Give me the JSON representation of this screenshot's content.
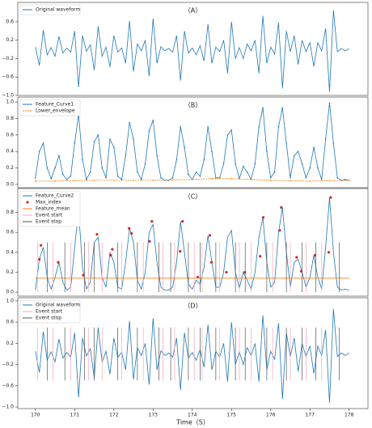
{
  "chart_data": [
    {
      "type": "line",
      "title": "（A）",
      "xlim": [
        169.55,
        178.48
      ],
      "ylim": [
        -1.0,
        1.02
      ],
      "yticks": [
        {
          "value": -1,
          "label": "−1.0"
        },
        {
          "value": -0.6,
          "label": "−0.6"
        },
        {
          "value": -0.2,
          "label": "−0.2"
        },
        0.2,
        0.6
      ],
      "x": [
        170,
        170.1,
        170.2,
        170.3,
        170.4,
        170.5,
        170.6,
        170.7,
        170.8,
        170.9,
        171,
        171.1,
        171.2,
        171.3,
        171.4,
        171.5,
        171.6,
        171.7,
        171.8,
        171.9,
        172,
        172.1,
        172.2,
        172.3,
        172.4,
        172.5,
        172.6,
        172.7,
        172.8,
        172.9,
        173,
        173.1,
        173.2,
        173.3,
        173.4,
        173.5,
        173.6,
        173.7,
        173.8,
        173.9,
        174,
        174.1,
        174.2,
        174.3,
        174.4,
        174.5,
        174.6,
        174.7,
        174.8,
        174.9,
        175,
        175.1,
        175.2,
        175.3,
        175.4,
        175.5,
        175.6,
        175.7,
        175.8,
        175.9,
        176,
        176.1,
        176.2,
        176.3,
        176.4,
        176.5,
        176.6,
        176.7,
        176.8,
        176.9,
        177,
        177.1,
        177.2,
        177.3,
        177.4,
        177.5,
        177.6,
        177.7,
        177.8,
        177.9,
        178
      ],
      "series": [
        {
          "name": "Original waveform",
          "color": "#1f77b4",
          "values": [
            0.05,
            -0.35,
            0.42,
            -0.12,
            0.04,
            -0.15,
            0.28,
            -0.08,
            0.03,
            -0.06,
            0.4,
            -0.82,
            0.3,
            -0.04,
            0.1,
            -0.45,
            0.5,
            -0.15,
            0.05,
            -0.38,
            0.3,
            -0.06,
            0.03,
            -0.3,
            0.62,
            -0.48,
            0.12,
            -0.03,
            0.2,
            -0.58,
            0.67,
            -0.3,
            0.06,
            -0.03,
            0.02,
            -0.06,
            0.3,
            -0.68,
            0.4,
            -0.08,
            0.03,
            -0.12,
            0.08,
            -0.25,
            0.55,
            -0.3,
            0.05,
            -0.05,
            0.2,
            -0.52,
            0.6,
            -0.2,
            0.04,
            -0.2,
            0.12,
            -0.03,
            0.2,
            -0.52,
            0.73,
            -0.3,
            0.05,
            -0.1,
            0.58,
            -0.85,
            0.4,
            -0.05,
            0.3,
            -0.33,
            0.2,
            -0.05,
            0.15,
            -0.37,
            0.15,
            -0.03,
            0.45,
            -0.92,
            0.85,
            -0.05,
            0.02,
            -0.03,
            0.02
          ]
        }
      ]
    },
    {
      "type": "line",
      "title": "（B）",
      "xlim": [
        169.55,
        178.48
      ],
      "ylim": [
        -0.04,
        1.06
      ],
      "yticks": [
        {
          "value": 0,
          "label": "0.0"
        },
        0.2,
        0.4,
        0.6,
        0.8,
        {
          "value": 1,
          "label": "1.0"
        }
      ],
      "x": [
        170,
        170.1,
        170.2,
        170.3,
        170.4,
        170.5,
        170.6,
        170.7,
        170.8,
        170.9,
        171,
        171.1,
        171.2,
        171.3,
        171.4,
        171.5,
        171.6,
        171.7,
        171.8,
        171.9,
        172,
        172.1,
        172.2,
        172.3,
        172.4,
        172.5,
        172.6,
        172.7,
        172.8,
        172.9,
        173,
        173.1,
        173.2,
        173.3,
        173.4,
        173.5,
        173.6,
        173.7,
        173.8,
        173.9,
        174,
        174.1,
        174.2,
        174.3,
        174.4,
        174.5,
        174.6,
        174.7,
        174.8,
        174.9,
        175,
        175.1,
        175.2,
        175.3,
        175.4,
        175.5,
        175.6,
        175.7,
        175.8,
        175.9,
        176,
        176.1,
        176.2,
        176.3,
        176.4,
        176.5,
        176.6,
        176.7,
        176.8,
        176.9,
        177,
        177.1,
        177.2,
        177.3,
        177.4,
        177.5,
        177.6,
        177.7,
        177.8,
        177.9,
        178
      ],
      "series": [
        {
          "name": "Feature_Curve1",
          "color": "#1f77b4",
          "marker": true,
          "values": [
            0.08,
            0.4,
            0.5,
            0.2,
            0.07,
            0.2,
            0.35,
            0.12,
            0.06,
            0.1,
            0.5,
            0.85,
            0.3,
            0.06,
            0.15,
            0.52,
            0.6,
            0.2,
            0.08,
            0.55,
            0.45,
            0.1,
            0.06,
            0.35,
            0.75,
            0.55,
            0.15,
            0.06,
            0.25,
            0.65,
            0.78,
            0.35,
            0.08,
            0.05,
            0.05,
            0.08,
            0.3,
            0.7,
            0.45,
            0.12,
            0.06,
            0.15,
            0.1,
            0.3,
            0.7,
            0.4,
            0.08,
            0.08,
            0.25,
            0.6,
            0.66,
            0.25,
            0.07,
            0.22,
            0.15,
            0.06,
            0.25,
            0.7,
            0.93,
            0.4,
            0.08,
            0.15,
            0.7,
            0.93,
            0.5,
            0.08,
            0.35,
            0.4,
            0.25,
            0.08,
            0.2,
            0.45,
            0.2,
            0.06,
            0.55,
            0.99,
            0.5,
            0.08,
            0.05,
            0.06,
            0.05
          ]
        },
        {
          "name": "Lower_envelope",
          "color": "#ff7f0e",
          "marker": true,
          "dashed": true,
          "x": [
            170,
            170.5,
            171,
            171.5,
            172,
            172.5,
            173,
            173.5,
            174,
            174.5,
            175,
            175.5,
            176,
            176.5,
            177,
            177.5,
            178
          ],
          "values": [
            0.04,
            0.04,
            0.045,
            0.05,
            0.05,
            0.05,
            0.05,
            0.055,
            0.06,
            0.07,
            0.07,
            0.06,
            0.05,
            0.045,
            0.04,
            0.045,
            0.05
          ]
        }
      ]
    },
    {
      "type": "line",
      "title": "（C）",
      "xlim": [
        169.55,
        178.48
      ],
      "ylim": [
        -0.04,
        1.04
      ],
      "yticks": [
        {
          "value": 0,
          "label": "0.0"
        },
        0.2,
        0.4,
        0.6,
        0.8
      ],
      "x": [
        170,
        170.1,
        170.2,
        170.3,
        170.4,
        170.5,
        170.6,
        170.7,
        170.8,
        170.9,
        171,
        171.1,
        171.2,
        171.3,
        171.4,
        171.5,
        171.6,
        171.7,
        171.8,
        171.9,
        172,
        172.1,
        172.2,
        172.3,
        172.4,
        172.5,
        172.6,
        172.7,
        172.8,
        172.9,
        173,
        173.1,
        173.2,
        173.3,
        173.4,
        173.5,
        173.6,
        173.7,
        173.8,
        173.9,
        174,
        174.1,
        174.2,
        174.3,
        174.4,
        174.5,
        174.6,
        174.7,
        174.8,
        174.9,
        175,
        175.1,
        175.2,
        175.3,
        175.4,
        175.5,
        175.6,
        175.7,
        175.8,
        175.9,
        176,
        176.1,
        176.2,
        176.3,
        176.4,
        176.5,
        176.6,
        176.7,
        176.8,
        176.9,
        177,
        177.1,
        177.2,
        177.3,
        177.4,
        177.5,
        177.6,
        177.7,
        177.8,
        177.9,
        178
      ],
      "series": [
        {
          "name": "Feature_Curve2",
          "color": "#1f77b4",
          "values": [
            0.02,
            0.33,
            0.45,
            0.15,
            0.03,
            0.15,
            0.3,
            0.1,
            0.02,
            0.05,
            0.45,
            0.82,
            0.25,
            0.03,
            0.1,
            0.5,
            0.55,
            0.15,
            0.05,
            0.4,
            0.3,
            0.05,
            0.03,
            0.3,
            0.64,
            0.5,
            0.12,
            0.03,
            0.2,
            0.6,
            0.68,
            0.3,
            0.05,
            0.02,
            0.02,
            0.05,
            0.3,
            0.71,
            0.4,
            0.08,
            0.03,
            0.12,
            0.08,
            0.25,
            0.57,
            0.3,
            0.05,
            0.05,
            0.2,
            0.55,
            0.62,
            0.2,
            0.04,
            0.2,
            0.12,
            0.03,
            0.2,
            0.55,
            0.75,
            0.3,
            0.05,
            0.1,
            0.6,
            0.85,
            0.4,
            0.05,
            0.3,
            0.33,
            0.2,
            0.05,
            0.15,
            0.37,
            0.15,
            0.03,
            0.45,
            0.95,
            0.4,
            0.05,
            0.02,
            0.03,
            0.02
          ]
        },
        {
          "name": "Max_index",
          "color": "#d62728",
          "kind": "scatter",
          "x": [
            170.1,
            170.14,
            170.58,
            171.09,
            171.22,
            171.57,
            171.92,
            171.96,
            172.39,
            172.45,
            172.91,
            172.97,
            173.69,
            173.75,
            174.14,
            174.45,
            174.49,
            174.87,
            175.34,
            175.73,
            175.81,
            176.23,
            176.27,
            176.66,
            176.78,
            177.13,
            177.48,
            177.53
          ],
          "values": [
            0.33,
            0.47,
            0.3,
            0.82,
            0.17,
            0.58,
            0.37,
            0.43,
            0.64,
            0.59,
            0.51,
            0.71,
            0.41,
            0.71,
            0.15,
            0.57,
            0.3,
            0.2,
            0.2,
            0.36,
            0.75,
            0.62,
            0.85,
            0.35,
            0.21,
            0.37,
            0.4,
            0.95
          ]
        },
        {
          "name": "Feature_mean",
          "color": "#ff7f0e",
          "x": [
            170,
            178
          ],
          "values": [
            0.14,
            0.14
          ]
        },
        {
          "name": "Event start",
          "color": "#f4a6b8",
          "kind": "vline",
          "range": [
            0,
            0.5
          ],
          "x": [
            170.05,
            170.45,
            170.9,
            171.35,
            171.7,
            172.2,
            172.75,
            173.25,
            173.55,
            174.05,
            174.25,
            174.7,
            175.2,
            175.5,
            176.05,
            176.5,
            176.9,
            177.3
          ]
        },
        {
          "name": "Event stop",
          "color": "#555555",
          "kind": "vline",
          "range": [
            0,
            0.5
          ],
          "x": [
            170.3,
            170.75,
            171.25,
            171.5,
            172.1,
            172.6,
            173.15,
            173.45,
            173.9,
            174.2,
            174.6,
            175.1,
            175.35,
            175.9,
            176.4,
            176.8,
            177.15,
            177.75
          ]
        }
      ]
    },
    {
      "type": "line",
      "title": "（D）",
      "xlabel": "Time（S）",
      "xlim": [
        169.55,
        178.48
      ],
      "ylim": [
        -1.03,
        1.06
      ],
      "xticks": [
        170,
        171,
        172,
        173,
        174,
        175,
        176,
        177,
        178
      ],
      "yticks": [
        {
          "value": -1,
          "label": "−1.0"
        },
        {
          "value": -0.6,
          "label": "−0.6"
        },
        {
          "value": -0.2,
          "label": "−0.2"
        },
        0.2,
        0.6,
        {
          "value": 1,
          "label": "1.0"
        }
      ],
      "x": [
        170,
        170.1,
        170.2,
        170.3,
        170.4,
        170.5,
        170.6,
        170.7,
        170.8,
        170.9,
        171,
        171.1,
        171.2,
        171.3,
        171.4,
        171.5,
        171.6,
        171.7,
        171.8,
        171.9,
        172,
        172.1,
        172.2,
        172.3,
        172.4,
        172.5,
        172.6,
        172.7,
        172.8,
        172.9,
        173,
        173.1,
        173.2,
        173.3,
        173.4,
        173.5,
        173.6,
        173.7,
        173.8,
        173.9,
        174,
        174.1,
        174.2,
        174.3,
        174.4,
        174.5,
        174.6,
        174.7,
        174.8,
        174.9,
        175,
        175.1,
        175.2,
        175.3,
        175.4,
        175.5,
        175.6,
        175.7,
        175.8,
        175.9,
        176,
        176.1,
        176.2,
        176.3,
        176.4,
        176.5,
        176.6,
        176.7,
        176.8,
        176.9,
        177,
        177.1,
        177.2,
        177.3,
        177.4,
        177.5,
        177.6,
        177.7,
        177.8,
        177.9,
        178
      ],
      "series": [
        {
          "name": "Original waveform",
          "color": "#1f77b4",
          "values": [
            0.05,
            -0.35,
            0.42,
            -0.12,
            0.04,
            -0.15,
            0.28,
            -0.08,
            0.03,
            -0.06,
            0.4,
            -0.82,
            0.3,
            -0.04,
            0.1,
            -0.45,
            0.5,
            -0.15,
            0.05,
            -0.38,
            0.3,
            -0.06,
            0.03,
            -0.3,
            0.62,
            -0.48,
            0.12,
            -0.03,
            0.2,
            -0.58,
            0.67,
            -0.3,
            0.06,
            -0.03,
            0.02,
            -0.06,
            0.3,
            -0.68,
            0.4,
            -0.08,
            0.03,
            -0.12,
            0.08,
            -0.25,
            0.55,
            -0.3,
            0.05,
            -0.05,
            0.2,
            -0.52,
            0.6,
            -0.2,
            0.04,
            -0.2,
            0.12,
            -0.03,
            0.2,
            -0.52,
            0.73,
            -0.3,
            0.05,
            -0.1,
            0.58,
            -0.85,
            0.4,
            -0.05,
            0.3,
            -0.33,
            0.2,
            -0.05,
            0.15,
            -0.37,
            0.15,
            -0.03,
            0.45,
            -0.92,
            0.85,
            -0.05,
            0.02,
            -0.03,
            0.02
          ]
        },
        {
          "name": "Event start",
          "color": "#f4a6b8",
          "kind": "vline",
          "range": [
            -0.5,
            0.5
          ],
          "x": [
            170.05,
            170.45,
            170.9,
            171.35,
            171.7,
            172.2,
            172.75,
            173.25,
            173.55,
            174.05,
            174.25,
            174.7,
            175.2,
            175.5,
            176.05,
            176.5,
            176.9,
            177.3
          ]
        },
        {
          "name": "Event stop",
          "color": "#555555",
          "kind": "vline",
          "range": [
            -0.5,
            0.5
          ],
          "x": [
            170.3,
            170.75,
            171.25,
            171.5,
            172.1,
            172.6,
            173.15,
            173.45,
            173.9,
            174.2,
            174.6,
            175.1,
            175.35,
            175.9,
            176.4,
            176.8,
            177.15,
            177.75
          ]
        }
      ]
    }
  ]
}
